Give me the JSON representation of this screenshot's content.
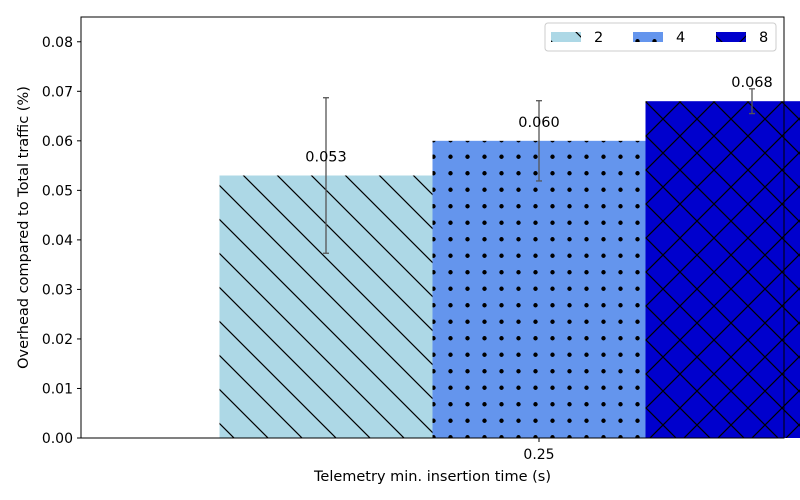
{
  "chart_data": {
    "type": "bar",
    "title": "",
    "xlabel": "Telemetry min. insertion time (s)",
    "ylabel": "Overhead compared to Total traffic (%)",
    "categories": [
      "0.25"
    ],
    "ylim": [
      0,
      0.085
    ],
    "yticks": [
      "0.00",
      "0.01",
      "0.02",
      "0.03",
      "0.04",
      "0.05",
      "0.06",
      "0.07",
      "0.08"
    ],
    "grid": false,
    "legend": {
      "placement": "top-right",
      "columns": 3
    },
    "series": [
      {
        "name": "2",
        "values": [
          0.053
        ],
        "error": [
          0.0157
        ],
        "label": "0.053",
        "color": "#add8e6",
        "hatch": "diagonal"
      },
      {
        "name": "4",
        "values": [
          0.06
        ],
        "error": [
          0.0081
        ],
        "label": "0.060",
        "color": "#6495ed",
        "hatch": "dots"
      },
      {
        "name": "8",
        "values": [
          0.068
        ],
        "error": [
          0.0025
        ],
        "label": "0.068",
        "color": "#0000cd",
        "hatch": "crosshatch"
      }
    ]
  }
}
